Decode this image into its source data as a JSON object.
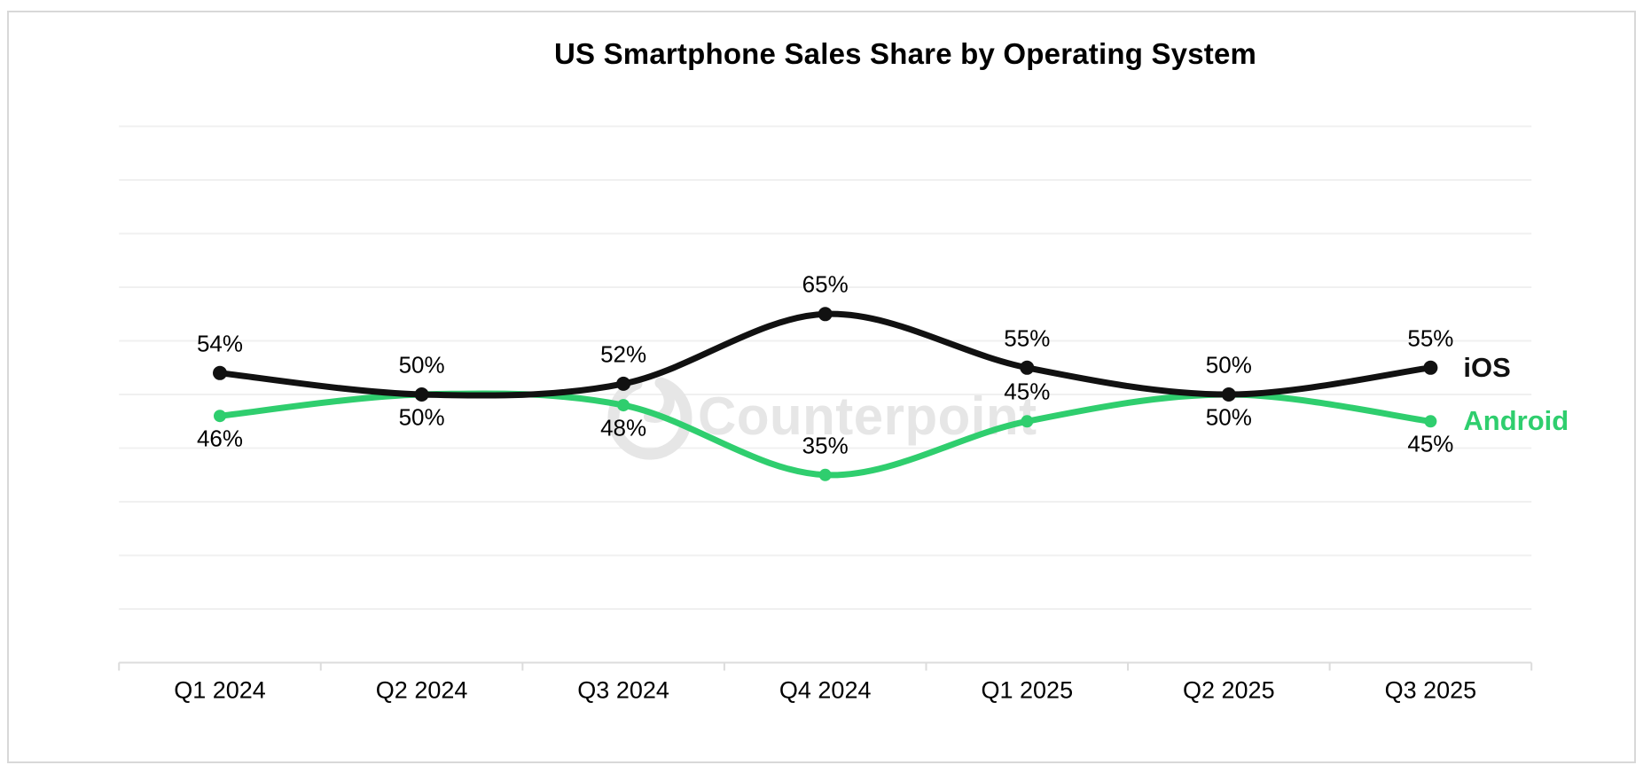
{
  "title": "US Smartphone Sales Share by Operating System",
  "watermark": {
    "text": "Counterpoint",
    "logo_icon": "counterpoint-ring-logo",
    "color": "#e6e6e6"
  },
  "colors": {
    "gridline": "#f0f0f0",
    "axis": "#dcdcdc",
    "frame": "#d8d8d8",
    "label_text": "#000000"
  },
  "chart_data": {
    "type": "line",
    "title": "US Smartphone Sales Share by Operating System",
    "x": [
      "Q1 2024",
      "Q2 2024",
      "Q3 2024",
      "Q4 2024",
      "Q1 2025",
      "Q2 2025",
      "Q3 2025"
    ],
    "series": [
      {
        "name": "iOS",
        "color": "#111111",
        "values": [
          54,
          50,
          52,
          65,
          55,
          50,
          55
        ],
        "labels": [
          "54%",
          "50%",
          "52%",
          "65%",
          "55%",
          "50%",
          "55%"
        ],
        "label_side": [
          "above",
          "above",
          "above",
          "above",
          "above",
          "above",
          "above"
        ]
      },
      {
        "name": "Android",
        "color": "#2fce6e",
        "values": [
          46,
          50,
          48,
          35,
          45,
          50,
          45
        ],
        "labels": [
          "46%",
          "50%",
          "48%",
          "35%",
          "45%",
          "50%",
          "45%"
        ],
        "label_side": [
          "below",
          "below",
          "below",
          "above",
          "above",
          "below",
          "below"
        ]
      }
    ],
    "xlabel": "",
    "ylabel": "",
    "ylim": [
      0,
      100
    ],
    "y_axis_labels_visible": false,
    "grid": {
      "horizontal": true,
      "interval_percent": 10
    },
    "line_style": "smooth",
    "markers": true,
    "legend_position": "right-of-line-end"
  }
}
